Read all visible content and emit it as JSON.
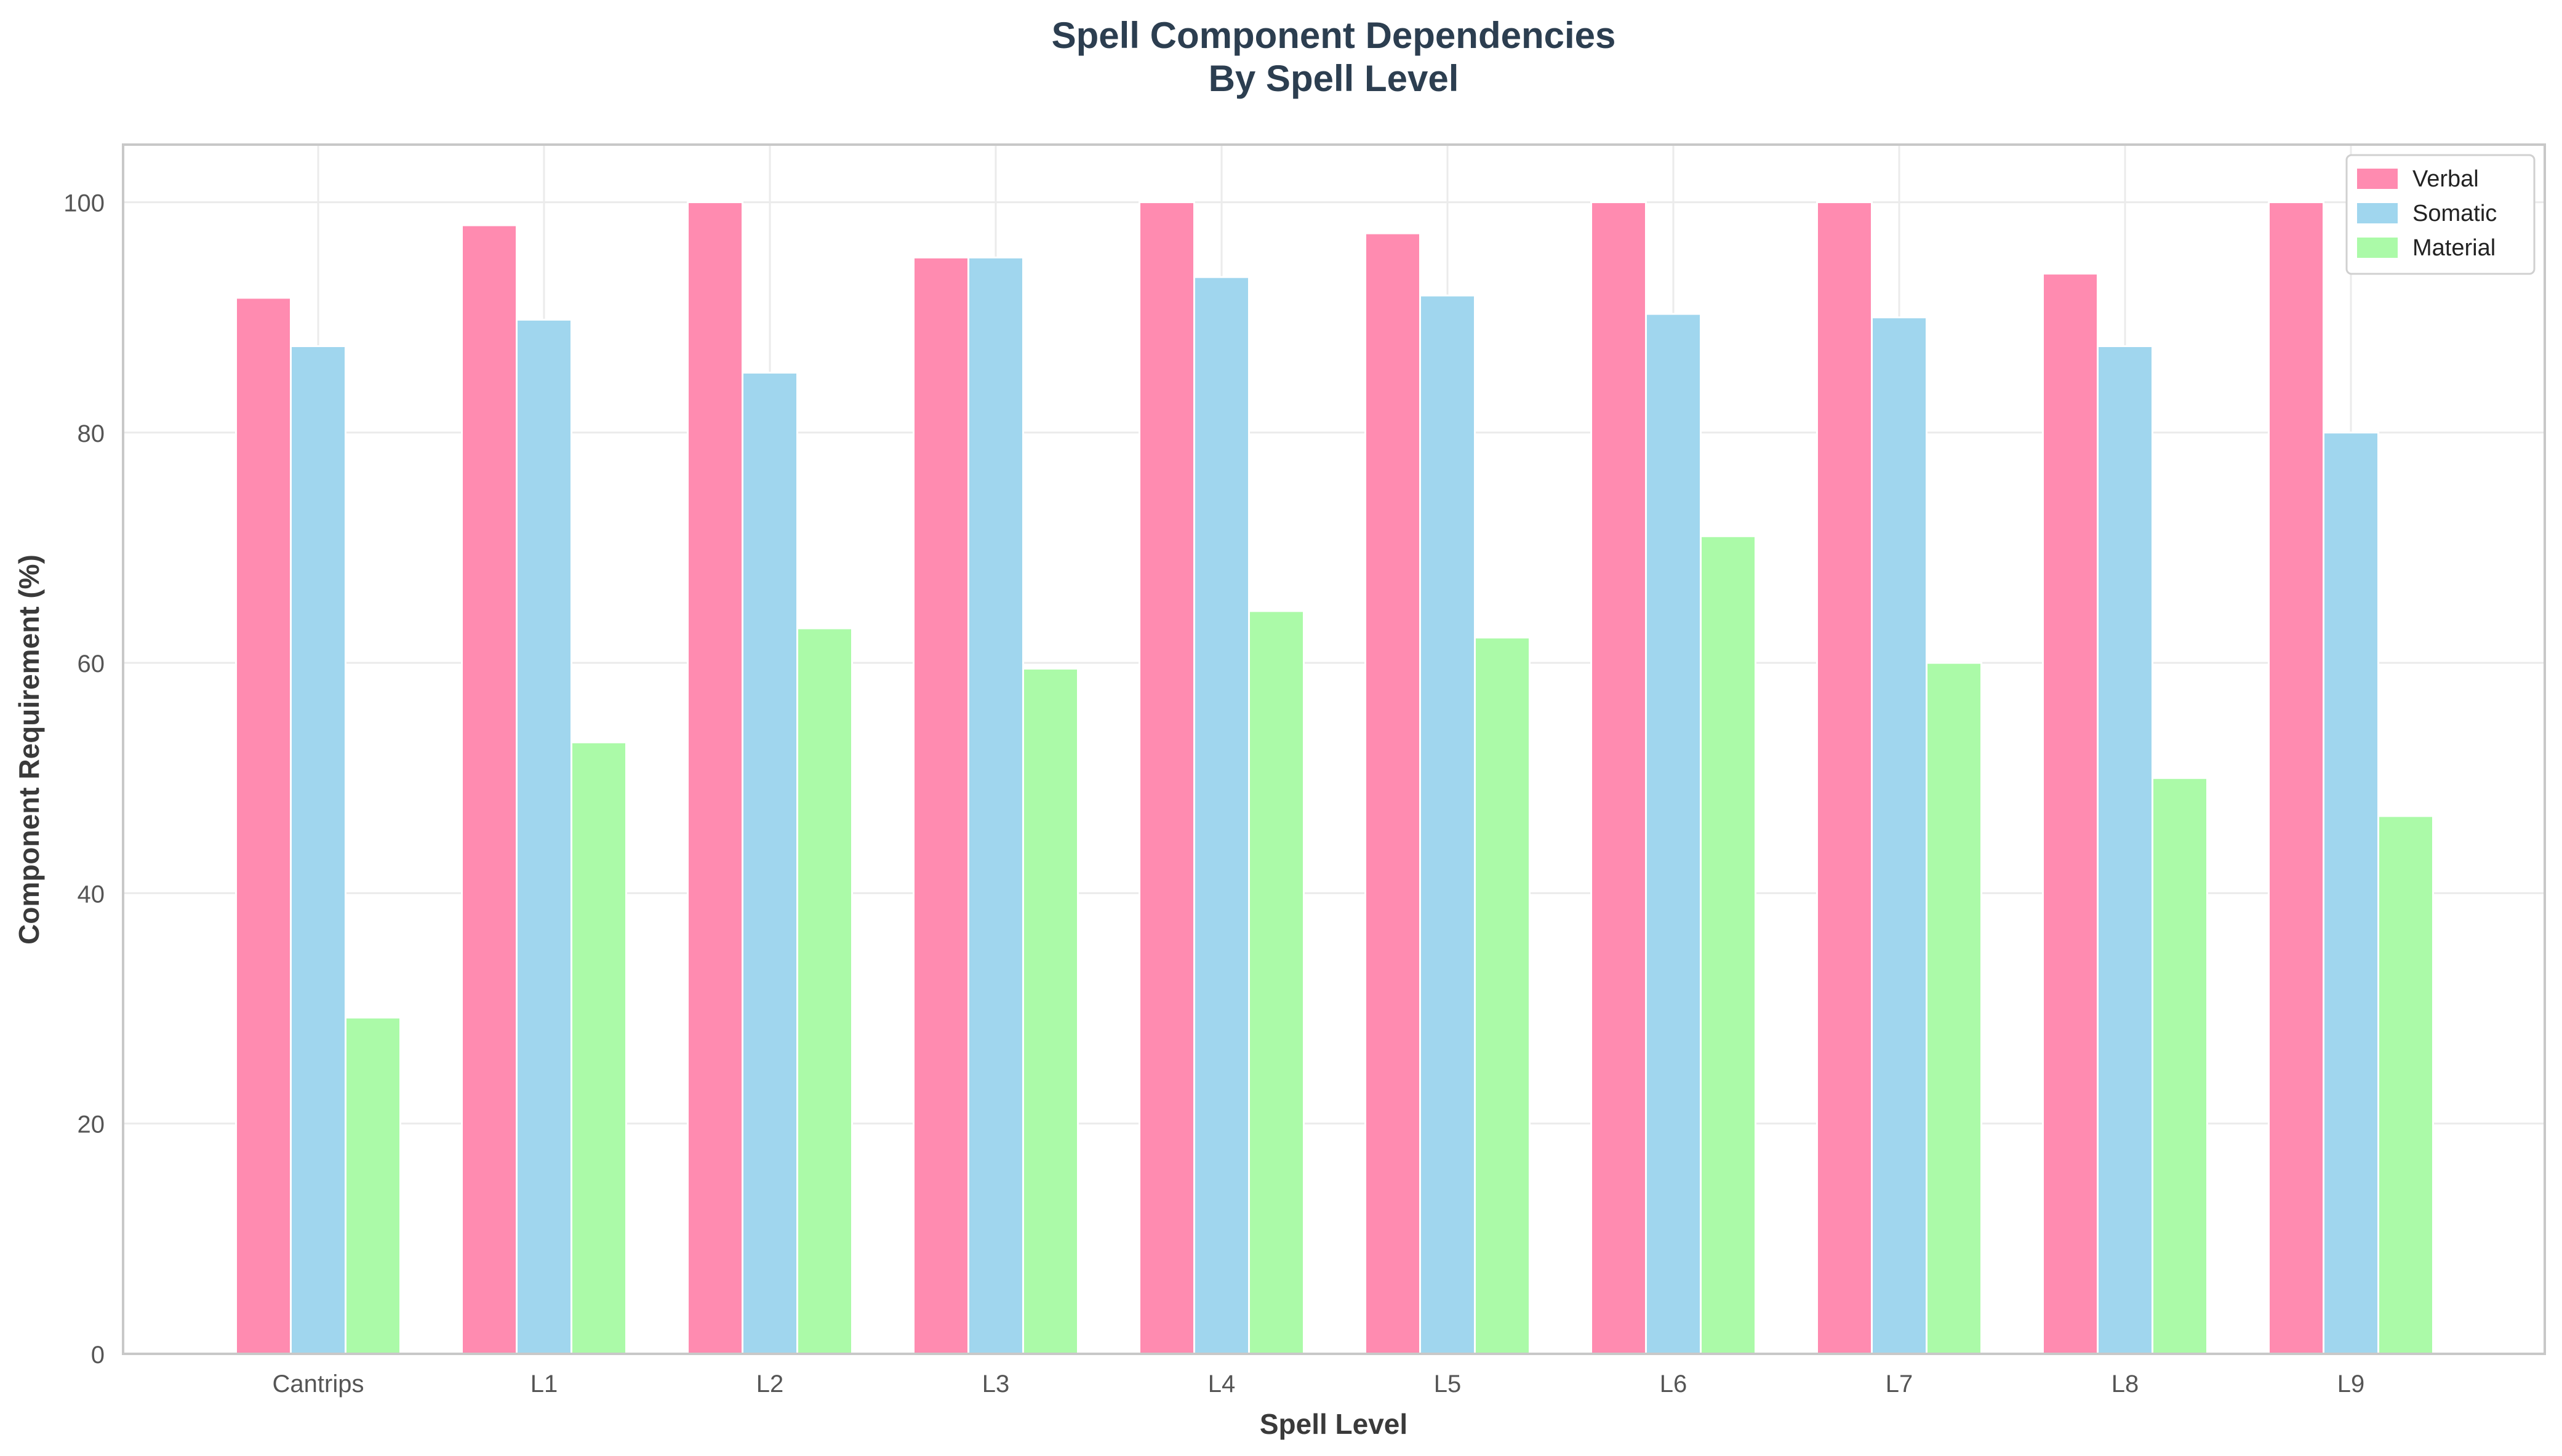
{
  "chart_data": {
    "type": "bar",
    "title": "Spell Component Dependencies\nBy Spell Level",
    "title_lines": [
      "Spell Component Dependencies",
      "By Spell Level"
    ],
    "xlabel": "Spell Level",
    "ylabel": "Component Requirement (%)",
    "ylim": [
      0,
      105
    ],
    "yticks": [
      0,
      20,
      40,
      60,
      80,
      100
    ],
    "categories": [
      "Cantrips",
      "L1",
      "L2",
      "L3",
      "L4",
      "L5",
      "L6",
      "L7",
      "L8",
      "L9"
    ],
    "series": [
      {
        "name": "Verbal",
        "color": "#ff8bb0",
        "values": [
          91.7,
          98.0,
          100.0,
          95.2,
          100.0,
          97.3,
          100.0,
          100.0,
          93.8,
          100.0
        ]
      },
      {
        "name": "Somatic",
        "color": "#a0d6ee",
        "values": [
          87.5,
          89.8,
          85.2,
          95.2,
          93.5,
          91.9,
          90.3,
          90.0,
          87.5,
          80.0
        ]
      },
      {
        "name": "Material",
        "color": "#abfaa8",
        "values": [
          29.2,
          53.1,
          63.0,
          59.5,
          64.5,
          62.2,
          71.0,
          60.0,
          50.0,
          46.7
        ]
      }
    ],
    "grid": true,
    "legend_position": "top-right"
  }
}
